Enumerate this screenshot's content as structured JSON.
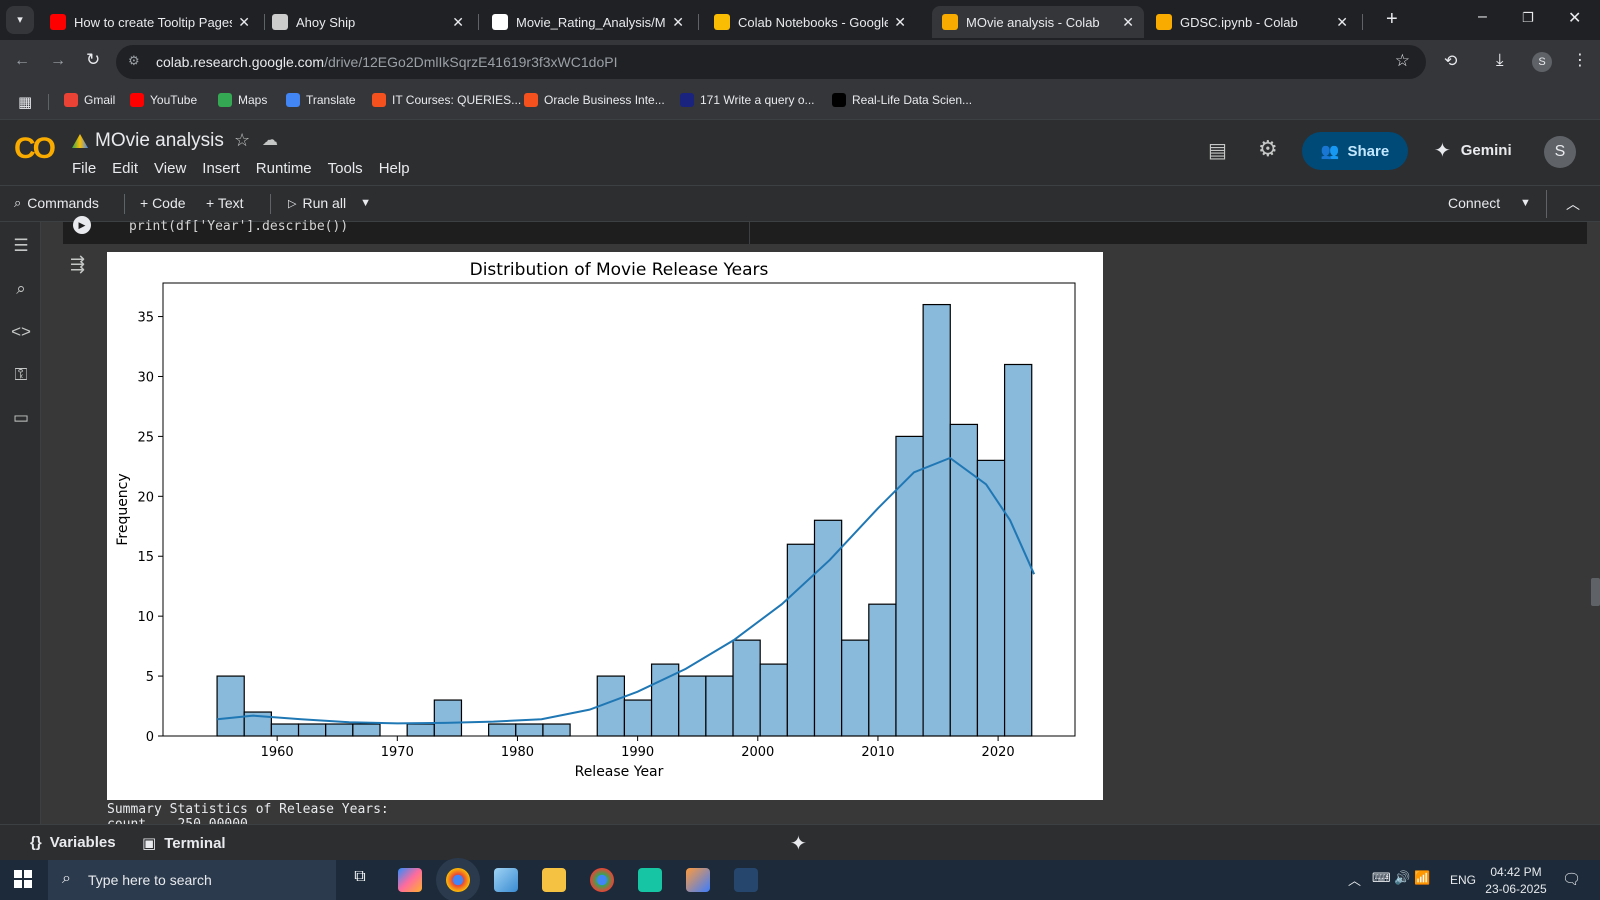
{
  "tabs": [
    {
      "title": "How to create Tooltip Pages",
      "icon": "youtube-icon",
      "color": "#ff0000"
    },
    {
      "title": "Ahoy Ship",
      "icon": "ship-icon",
      "color": "#cccccc"
    },
    {
      "title": "Movie_Rating_Analysis/MOvi",
      "icon": "github-icon",
      "color": "#ffffff"
    },
    {
      "title": "Colab Notebooks - Google D",
      "icon": "drive-icon",
      "color": "#fbbc04"
    },
    {
      "title": "MOvie analysis - Colab",
      "icon": "colab-icon",
      "color": "#f9ab00"
    },
    {
      "title": "GDSC.ipynb - Colab",
      "icon": "colab-icon",
      "color": "#f9ab00"
    }
  ],
  "address": {
    "host": "colab.research.google.com",
    "path": "/drive/12EGo2DmlIkSqrzE41619r3f3xWC1doPI",
    "profile": "S"
  },
  "bookmarks": [
    {
      "label": "Gmail",
      "color": "#ea4335"
    },
    {
      "label": "YouTube",
      "color": "#ff0000"
    },
    {
      "label": "Maps",
      "color": "#34a853"
    },
    {
      "label": "Translate",
      "color": "#4285f4"
    },
    {
      "label": "IT Courses: QUERIES...",
      "color": "#f4511e"
    },
    {
      "label": "Oracle Business Inte...",
      "color": "#f4511e"
    },
    {
      "label": "171 Write a query o...",
      "color": "#1a237e"
    },
    {
      "label": "Real-Life Data Scien...",
      "color": "#000000"
    }
  ],
  "notebook": {
    "title": "MOvie analysis",
    "menus": [
      "File",
      "Edit",
      "View",
      "Insert",
      "Runtime",
      "Tools",
      "Help"
    ],
    "share": "Share",
    "gemini": "Gemini",
    "avatar": "S"
  },
  "toolbar": {
    "commands": "Commands",
    "code": "+ Code",
    "text": "+ Text",
    "run_all": "Run all",
    "connect": "Connect"
  },
  "cell": {
    "code": "print(df['Year'].describe())",
    "summary": "Summary Statistics of Release Years:",
    "summary2": "count    250.00000"
  },
  "chart_data": {
    "type": "bar",
    "title": "Distribution of Movie Release Years",
    "xlabel": "Release Year",
    "ylabel": "Frequency",
    "bin_start": 1955,
    "bin_width": 2.26,
    "values": [
      5,
      2,
      1,
      1,
      1,
      1,
      0,
      1,
      3,
      0,
      1,
      1,
      1,
      0,
      5,
      3,
      6,
      5,
      5,
      8,
      6,
      16,
      18,
      8,
      11,
      25,
      36,
      26,
      23,
      31
    ],
    "xlim": [
      1950.5,
      2026.4
    ],
    "ylim": [
      0,
      37.8
    ],
    "xticks": [
      1960,
      1970,
      1980,
      1990,
      2000,
      2010,
      2020
    ],
    "yticks": [
      0,
      5,
      10,
      15,
      20,
      25,
      30,
      35
    ],
    "kde": [
      [
        1955,
        1.4
      ],
      [
        1958,
        1.7
      ],
      [
        1962,
        1.4
      ],
      [
        1966,
        1.15
      ],
      [
        1970,
        1.05
      ],
      [
        1974,
        1.1
      ],
      [
        1978,
        1.2
      ],
      [
        1982,
        1.4
      ],
      [
        1986,
        2.2
      ],
      [
        1990,
        3.7
      ],
      [
        1994,
        5.6
      ],
      [
        1998,
        8.0
      ],
      [
        2002,
        11.0
      ],
      [
        2006,
        14.7
      ],
      [
        2010,
        19.0
      ],
      [
        2013,
        22.0
      ],
      [
        2016,
        23.2
      ],
      [
        2019,
        21.0
      ],
      [
        2021,
        18.0
      ],
      [
        2023,
        13.5
      ]
    ],
    "bar_color": "#89b9db",
    "line_color": "#1f77b4"
  },
  "bottom": {
    "variables": "Variables",
    "terminal": "Terminal"
  },
  "taskbar": {
    "search": "Type here to search",
    "time": "04:42 PM",
    "date": "23-06-2025",
    "lang": "ENG"
  }
}
